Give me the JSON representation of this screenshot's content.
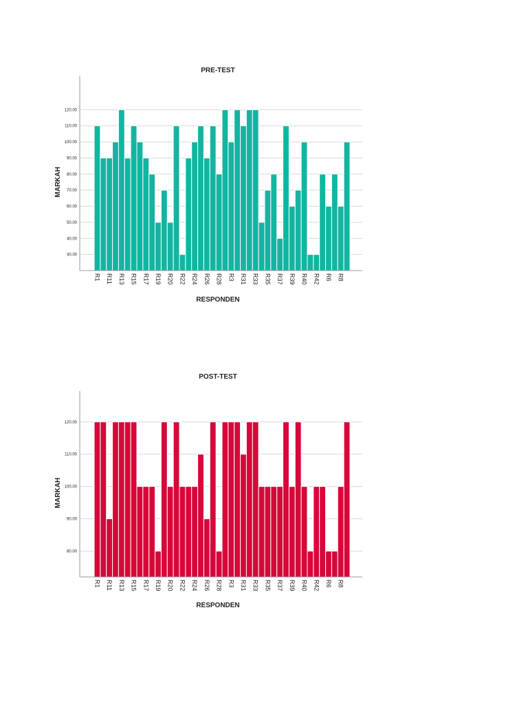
{
  "chart_data": [
    {
      "type": "bar",
      "title": "PRE-TEST",
      "xlabel": "RESPONDEN",
      "ylabel": "MARKAH",
      "color": "#12b5a1",
      "ylim": [
        20,
        130
      ],
      "yticks": [
        30,
        40,
        50,
        60,
        70,
        80,
        90,
        100,
        110,
        120
      ],
      "ytick_labels": [
        "30.00",
        "40.00",
        "50.00",
        "60.00",
        "70.00",
        "80.00",
        "90.00",
        "100.00",
        "110.00",
        "120.00"
      ],
      "grid": true,
      "x_tick_labels": [
        "R1",
        "R11",
        "R13",
        "R15",
        "R17",
        "R19",
        "R20",
        "R22",
        "R24",
        "R26",
        "R28",
        "R3",
        "R31",
        "R33",
        "R35",
        "R37",
        "R39",
        "R40",
        "R42",
        "R6",
        "R8"
      ],
      "values": [
        110,
        90,
        90,
        100,
        120,
        90,
        110,
        100,
        90,
        80,
        50,
        70,
        50,
        110,
        30,
        90,
        100,
        110,
        90,
        110,
        80,
        120,
        100,
        120,
        110,
        120,
        120,
        50,
        70,
        80,
        40,
        110,
        60,
        70,
        100,
        30,
        30,
        80,
        60,
        80,
        60,
        100
      ]
    },
    {
      "type": "bar",
      "title": "POST-TEST",
      "xlabel": "RESPONDEN",
      "ylabel": "MARKAH",
      "color": "#d6083a",
      "ylim": [
        72,
        124
      ],
      "yticks": [
        80,
        90,
        100,
        110,
        120
      ],
      "ytick_labels": [
        "80.00",
        "90.00",
        "100.00",
        "110.00",
        "120.00"
      ],
      "grid": true,
      "x_tick_labels": [
        "R1",
        "R11",
        "R13",
        "R15",
        "R17",
        "R19",
        "R20",
        "R22",
        "R24",
        "R26",
        "R28",
        "R3",
        "R31",
        "R33",
        "R35",
        "R37",
        "R39",
        "R40",
        "R42",
        "R6",
        "R8"
      ],
      "values": [
        120,
        120,
        90,
        120,
        120,
        120,
        120,
        100,
        100,
        100,
        80,
        120,
        100,
        120,
        100,
        100,
        100,
        110,
        90,
        120,
        80,
        120,
        120,
        120,
        110,
        120,
        120,
        100,
        100,
        100,
        100,
        120,
        100,
        120,
        100,
        80,
        100,
        100,
        80,
        80,
        100,
        120
      ]
    }
  ]
}
